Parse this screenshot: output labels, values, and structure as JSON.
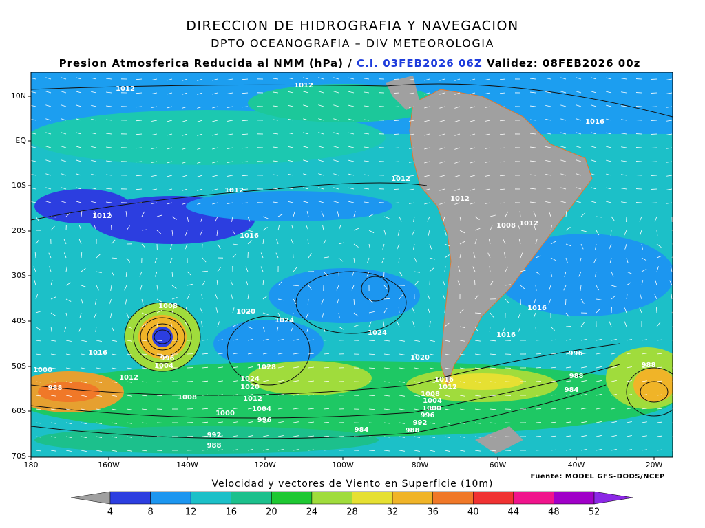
{
  "header": {
    "title": "DIRECCION DE HIDROGRAFIA Y NAVEGACION",
    "subtitle": "DPTO OCEANOGRAFIA – DIV METEOROLOGIA",
    "product": "Presion Atmosferica Reducida al NMM (hPa) /",
    "init": "C.I. 03FEB2026 06Z",
    "valid": "Validez: 08FEB2026 00z"
  },
  "map": {
    "lat_labels": [
      "10N",
      "EQ",
      "10S",
      "20S",
      "30S",
      "40S",
      "50S",
      "60S",
      "70S"
    ],
    "lon_labels": [
      "180",
      "160W",
      "140W",
      "120W",
      "100W",
      "80W",
      "60W",
      "40W",
      "20W"
    ],
    "isobar_labels": [
      "1012",
      "1012",
      "1016",
      "1012",
      "1012",
      "1012",
      "1012",
      "1008",
      "1012",
      "1016",
      "1008",
      "1020",
      "1024",
      "1016",
      "1024",
      "1016",
      "1016",
      "996",
      "1004",
      "1028",
      "1020",
      "996",
      "1000",
      "1012",
      "1024",
      "1020",
      "1016",
      "1012",
      "988",
      "988",
      "988",
      "984",
      "1008",
      "1012",
      "1008",
      "1004",
      "1000",
      "1004",
      "1000",
      "996",
      "996",
      "992",
      "984",
      "988",
      "992",
      "988"
    ]
  },
  "colorbar": {
    "title": "Velocidad y vectores de Viento en Superficie (10m)",
    "values": [
      4,
      8,
      12,
      16,
      20,
      24,
      28,
      32,
      36,
      40,
      44,
      48,
      52
    ],
    "colors": [
      "#a0a0a0",
      "#2c3ee0",
      "#1c96f0",
      "#1cc0c8",
      "#1cc08c",
      "#1ec832",
      "#a0dc3c",
      "#e6e032",
      "#f0b428",
      "#f07828",
      "#f03232",
      "#f0148c",
      "#a000c8",
      "#8c28e6"
    ]
  },
  "source": "Fuente: MODEL GFS-DODS/NCEP"
}
